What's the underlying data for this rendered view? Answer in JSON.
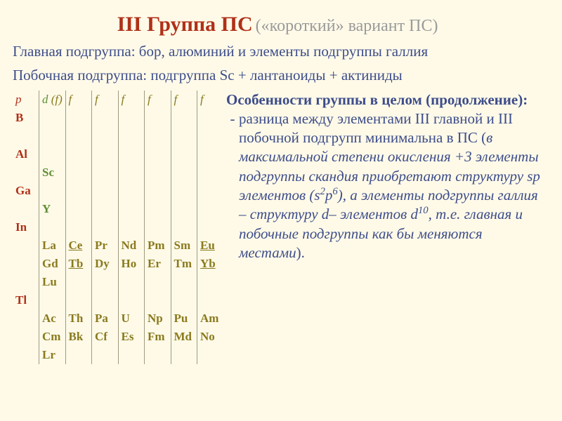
{
  "title": {
    "main": "III Группа ПС",
    "sub": "(«короткий» вариант ПС)"
  },
  "intro1": "Главная подгруппа: бор, алюминий и элементы подгруппы галлия",
  "intro2": "Побочная подгруппа: подгруппа Sc + лантаноиды + актиниды",
  "table": {
    "headers": {
      "p": "p",
      "d": "d",
      "f_paren": " (f)",
      "f": "f"
    },
    "p_col": [
      "B",
      "Al",
      "Ga",
      "In",
      "Tl"
    ],
    "d_col": [
      "Sc",
      "Y"
    ],
    "d_col_La": "La",
    "d_col_Gd": "Gd",
    "d_col_Lu": "Lu",
    "d_col_Ac": "Ac",
    "d_col_Cm": "Cm",
    "d_col_Lr": "Lr",
    "lanth": {
      "Ce": "Ce",
      "Tb": "Tb",
      "Pr": "Pr",
      "Dy": "Dy",
      "Nd": "Nd",
      "Ho": "Ho",
      "Pm": "Pm",
      "Er": "Er",
      "Sm": "Sm",
      "Tm": "Tm",
      "Eu": "Eu",
      "Yb": "Yb"
    },
    "act": {
      "Th": "Th",
      "Bk": "Bk",
      "Pa": "Pa",
      "Cf": "Cf",
      "U": "U",
      "Es": "Es",
      "Np": "Np",
      "Fm": "Fm",
      "Pu": "Pu",
      "Md": "Md",
      "Am": "Am",
      "No": "No"
    }
  },
  "body": {
    "heading": "Особенности группы в целом (продолжение):",
    "bullet": {
      "p1": "разница между элементами III главной и III побочной подгрупп минимальна в ПС (",
      "it1": "в максимальной степени окисления +3 элементы подгруппы скандия приобретают структуру sp элементов (s",
      "sup_s": "2",
      "it1b": "p",
      "sup_p": "6",
      "it2": "), а элементы подгруппы галлия – структуру d– элементов d",
      "sup_d": "10",
      "it3": ", т.е. главная и побочные подгруппы как бы меняются местами",
      "p2": ")."
    }
  },
  "style": {
    "bg": "#fffae8",
    "title_color": "#b03018",
    "subtitle_color": "#9a9a9a",
    "text_color": "#3d4d8a",
    "p_color": "#b03018",
    "d_color": "#5f8f34",
    "f_color": "#8a7a1e",
    "border_color": "#a09a80",
    "title_main_size": 30,
    "title_sub_size": 24,
    "intro_size": 21,
    "body_size": 21,
    "table_font_size": 17
  }
}
